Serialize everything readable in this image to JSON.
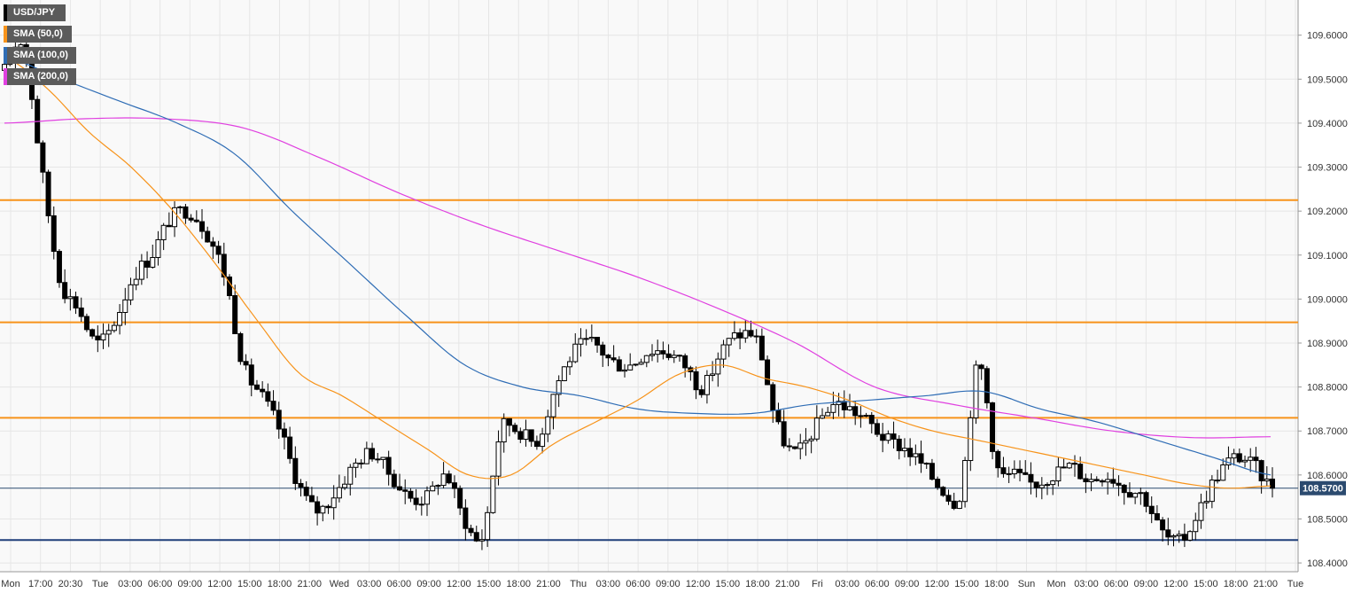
{
  "legend": {
    "symbol": "USD/JPY",
    "sma50": "SMA (50,0)",
    "sma100": "SMA (100,0)",
    "sma200": "SMA (200,0)"
  },
  "colors": {
    "background": "#ffffff",
    "plot_background": "#f9f9f9",
    "grid": "#e6e6e6",
    "candle": "#000000",
    "sma50": "#f7931a",
    "sma100": "#2f6db5",
    "sma200": "#e040e0",
    "level_line": "#f7931a",
    "support_line": "#1f3f7a",
    "price_line": "#2b4a6f",
    "price_tag": "#2b4a6f"
  },
  "chart_data": {
    "type": "candlestick",
    "symbol": "USD/JPY",
    "ylim": [
      108.38,
      109.68
    ],
    "y_ticks": [
      "109.6000",
      "109.5000",
      "109.4000",
      "109.3000",
      "109.2000",
      "109.1000",
      "109.0000",
      "108.9000",
      "108.8000",
      "108.7000",
      "108.6000",
      "108.5000",
      "108.4000"
    ],
    "x_ticks": [
      "Mon",
      "17:00",
      "20:30",
      "Tue",
      "03:00",
      "06:00",
      "09:00",
      "12:00",
      "15:00",
      "18:00",
      "21:00",
      "Wed",
      "03:00",
      "06:00",
      "09:00",
      "12:00",
      "15:00",
      "18:00",
      "21:00",
      "Thu",
      "03:00",
      "06:00",
      "09:00",
      "12:00",
      "15:00",
      "18:00",
      "21:00",
      "Fri",
      "03:00",
      "06:00",
      "09:00",
      "12:00",
      "15:00",
      "18:00",
      "Sun",
      "Mon",
      "03:00",
      "06:00",
      "09:00",
      "12:00",
      "15:00",
      "18:00",
      "21:00",
      "Tue"
    ],
    "grid": true,
    "current_price": "108.5700",
    "horizontal_levels": [
      109.225,
      108.947,
      108.73
    ],
    "support_level": 108.452,
    "price_path": [
      109.52,
      109.58,
      109.3,
      109.05,
      108.98,
      108.9,
      108.95,
      109.05,
      109.1,
      109.18,
      109.2,
      109.15,
      109.05,
      108.85,
      108.78,
      108.7,
      108.58,
      108.52,
      108.56,
      108.62,
      108.65,
      108.6,
      108.55,
      108.55,
      108.6,
      108.5,
      108.46,
      108.7,
      108.7,
      108.68,
      108.8,
      108.88,
      108.9,
      108.86,
      108.85,
      108.88,
      108.88,
      108.85,
      108.8,
      108.88,
      108.92,
      108.9,
      108.72,
      108.65,
      108.7,
      108.76,
      108.75,
      108.72,
      108.68,
      108.66,
      108.62,
      108.57,
      108.56,
      108.85,
      108.62,
      108.6,
      108.58,
      108.6,
      108.62,
      108.59,
      108.6,
      108.57,
      108.55,
      108.47,
      108.45,
      108.52,
      108.6,
      108.64,
      108.62,
      108.57
    ],
    "sma50": [
      109.55,
      109.48,
      109.38,
      109.3,
      109.2,
      109.08,
      108.95,
      108.83,
      108.78,
      108.72,
      108.66,
      108.6,
      108.6,
      108.67,
      108.72,
      108.77,
      108.83,
      108.85,
      108.82,
      108.8,
      108.77,
      108.73,
      108.7,
      108.68,
      108.66,
      108.64,
      108.62,
      108.6,
      108.58,
      108.57,
      108.575
    ],
    "sma100": [
      109.55,
      109.5,
      109.45,
      109.4,
      109.33,
      109.2,
      109.08,
      108.96,
      108.85,
      108.8,
      108.78,
      108.75,
      108.74,
      108.74,
      108.76,
      108.77,
      108.78,
      108.79,
      108.75,
      108.72,
      108.68,
      108.64,
      108.6
    ],
    "sma200": [
      109.4,
      109.41,
      109.41,
      109.39,
      109.32,
      109.24,
      109.17,
      109.11,
      109.05,
      108.98,
      108.9,
      108.8,
      108.76,
      108.73,
      108.7,
      108.685,
      108.687
    ],
    "annotations": []
  }
}
